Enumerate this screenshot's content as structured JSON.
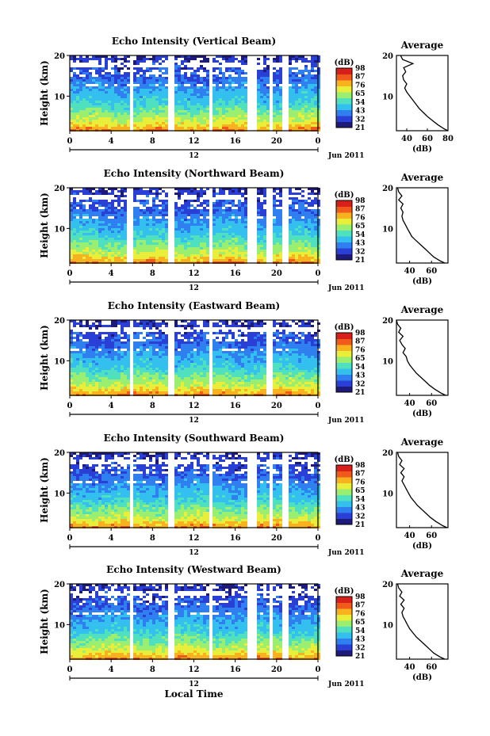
{
  "chart_data": [
    {
      "type": "heatmap",
      "title": "Echo Intensity (Vertical Beam)",
      "ylabel": "Height (km)",
      "yticks": [
        "20",
        "10"
      ],
      "ylim": [
        1.5,
        20
      ],
      "xticks": [
        "0",
        "4",
        "8",
        "12",
        "16",
        "20",
        "0"
      ],
      "xlim": [
        0,
        24
      ],
      "date_label": "12",
      "month_label": "Jun 2011",
      "colorbar": {
        "label": "(dB)",
        "ticks": [
          "98",
          "87",
          "76",
          "65",
          "54",
          "43",
          "32",
          "21"
        ],
        "range": [
          21,
          98
        ]
      },
      "gaps": [
        [
          5.6,
          6.0
        ],
        [
          9.5,
          10.0
        ],
        [
          13.3,
          13.8
        ],
        [
          17.1,
          18.0
        ],
        [
          19.3,
          19.6
        ],
        [
          20.5,
          21.1
        ]
      ],
      "profile": {
        "title": "Average",
        "xlabel": "(dB)",
        "xticks": [
          "40",
          "60",
          "80"
        ],
        "xlim": [
          30,
          80
        ],
        "y": [
          1.5,
          2,
          3,
          4,
          5,
          6,
          7,
          8,
          9,
          10,
          11,
          12,
          13,
          14,
          15,
          16,
          17,
          18,
          19,
          20
        ],
        "x": [
          80,
          76,
          70,
          65,
          60,
          56,
          52,
          49,
          46,
          43,
          40,
          38,
          40,
          37,
          36,
          39,
          37,
          46,
          36,
          34
        ]
      }
    },
    {
      "type": "heatmap",
      "title": "Echo Intensity (Northward Beam)",
      "ylabel": "Height (km)",
      "yticks": [
        "20",
        "10"
      ],
      "ylim": [
        1.5,
        20
      ],
      "xticks": [
        "0",
        "4",
        "8",
        "12",
        "16",
        "20",
        "0"
      ],
      "xlim": [
        0,
        24
      ],
      "date_label": "12",
      "month_label": "Jun 2011",
      "colorbar": {
        "label": "(dB)",
        "ticks": [
          "98",
          "87",
          "76",
          "65",
          "54",
          "43",
          "32",
          "21"
        ],
        "range": [
          21,
          98
        ]
      },
      "gaps": [
        [
          5.5,
          6.0
        ],
        [
          9.5,
          10.0
        ],
        [
          13.3,
          13.8
        ],
        [
          17.0,
          18.0
        ],
        [
          19.0,
          19.6
        ],
        [
          20.4,
          21.0
        ]
      ],
      "profile": {
        "title": "Average",
        "xlabel": "(dB)",
        "xticks": [
          "40",
          "60"
        ],
        "xlim": [
          28,
          75
        ],
        "y": [
          1.5,
          2,
          3,
          4,
          5,
          6,
          7,
          8,
          9,
          10,
          11,
          12,
          13,
          14,
          15,
          16,
          17,
          18,
          19,
          20
        ],
        "x": [
          72,
          68,
          62,
          58,
          54,
          50,
          46,
          42,
          40,
          38,
          36,
          34,
          33,
          34,
          32,
          34,
          30,
          33,
          30,
          29
        ]
      }
    },
    {
      "type": "heatmap",
      "title": "Echo Intensity (Eastward Beam)",
      "ylabel": "Height (km)",
      "yticks": [
        "20",
        "10"
      ],
      "ylim": [
        1.5,
        20
      ],
      "xticks": [
        "0",
        "4",
        "8",
        "12",
        "16",
        "20",
        "0"
      ],
      "xlim": [
        0,
        24
      ],
      "date_label": "12",
      "month_label": "Jun 2011",
      "colorbar": {
        "label": "(dB)",
        "ticks": [
          "98",
          "87",
          "76",
          "65",
          "54",
          "43",
          "32",
          "21"
        ],
        "range": [
          21,
          98
        ]
      },
      "gaps": [
        [
          5.6,
          6.0
        ],
        [
          9.5,
          10.0
        ],
        [
          13.3,
          13.8
        ],
        [
          17.8,
          18.0
        ],
        [
          18.9,
          19.5
        ]
      ],
      "profile": {
        "title": "Average",
        "xlabel": "(dB)",
        "xticks": [
          "40",
          "60"
        ],
        "xlim": [
          28,
          75
        ],
        "y": [
          1.5,
          2,
          3,
          4,
          5,
          6,
          7,
          8,
          9,
          10,
          11,
          12,
          13,
          14,
          15,
          16,
          17,
          18,
          19,
          20
        ],
        "x": [
          73,
          69,
          63,
          58,
          54,
          50,
          46,
          43,
          40,
          38,
          37,
          34,
          36,
          33,
          31,
          34,
          30,
          32,
          29,
          28
        ]
      }
    },
    {
      "type": "heatmap",
      "title": "Echo Intensity (Southward Beam)",
      "ylabel": "Height (km)",
      "yticks": [
        "20",
        "10"
      ],
      "ylim": [
        1.5,
        20
      ],
      "xticks": [
        "0",
        "4",
        "8",
        "12",
        "16",
        "20",
        "0"
      ],
      "xlim": [
        0,
        24
      ],
      "date_label": "12",
      "month_label": "Jun 2011",
      "colorbar": {
        "label": "(dB)",
        "ticks": [
          "98",
          "87",
          "76",
          "65",
          "54",
          "43",
          "32",
          "21"
        ],
        "range": [
          21,
          98
        ]
      },
      "gaps": [
        [
          5.6,
          6.0
        ],
        [
          9.5,
          10.0
        ],
        [
          13.3,
          13.8
        ],
        [
          17.1,
          18.0
        ],
        [
          19.1,
          19.5
        ],
        [
          20.4,
          20.9
        ]
      ],
      "profile": {
        "title": "Average",
        "xlabel": "(dB)",
        "xticks": [
          "40",
          "60"
        ],
        "xlim": [
          28,
          75
        ],
        "y": [
          1.5,
          2,
          3,
          4,
          5,
          6,
          7,
          8,
          9,
          10,
          11,
          12,
          13,
          14,
          15,
          16,
          17,
          18,
          19,
          20
        ],
        "x": [
          74,
          70,
          64,
          59,
          55,
          51,
          47,
          44,
          41,
          39,
          37,
          35,
          33,
          35,
          32,
          35,
          31,
          33,
          30,
          29
        ]
      }
    },
    {
      "type": "heatmap",
      "title": "Echo Intensity (Westward Beam)",
      "ylabel": "Height (km)",
      "yticks": [
        "20",
        "10"
      ],
      "ylim": [
        1.5,
        20
      ],
      "xticks": [
        "0",
        "4",
        "8",
        "12",
        "16",
        "20",
        "0"
      ],
      "xlim": [
        0,
        24
      ],
      "date_label": "12",
      "month_label": "Jun 2011",
      "colorbar": {
        "label": "(dB)",
        "ticks": [
          "98",
          "87",
          "76",
          "65",
          "54",
          "43",
          "32",
          "21"
        ],
        "range": [
          21,
          98
        ]
      },
      "gaps": [
        [
          5.6,
          6.0
        ],
        [
          9.5,
          10.0
        ],
        [
          13.3,
          13.8
        ],
        [
          17.1,
          18.0
        ],
        [
          19.1,
          19.5
        ],
        [
          20.4,
          20.9
        ]
      ],
      "profile": {
        "title": "Average",
        "xlabel": "(dB)",
        "xticks": [
          "40",
          "60"
        ],
        "xlim": [
          28,
          75
        ],
        "y": [
          1.5,
          2,
          3,
          4,
          5,
          6,
          7,
          8,
          9,
          10,
          11,
          12,
          13,
          14,
          15,
          16,
          17,
          18,
          19,
          20
        ],
        "x": [
          72,
          68,
          62,
          58,
          54,
          50,
          46,
          43,
          40,
          38,
          36,
          34,
          33,
          35,
          32,
          35,
          31,
          33,
          30,
          29
        ]
      }
    }
  ],
  "xlabel_bottom": "Local Time",
  "colors": {
    "scale": [
      "#1e1a7a",
      "#2a3fd6",
      "#2f7ff0",
      "#33c0ee",
      "#4fe0c0",
      "#9aee70",
      "#e9ee3a",
      "#f8b21f",
      "#f05a1a",
      "#d8201a"
    ]
  }
}
